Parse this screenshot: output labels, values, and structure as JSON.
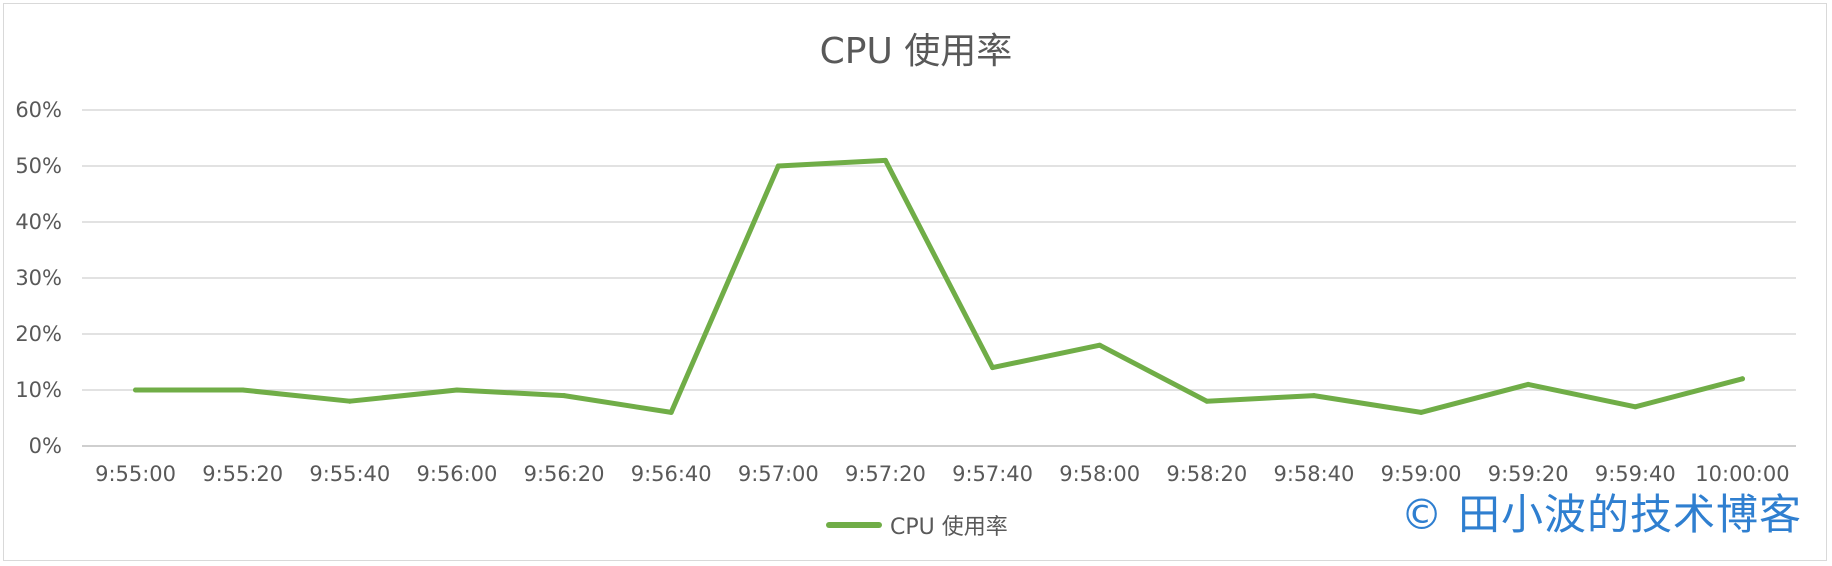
{
  "chart_data": {
    "type": "line",
    "title": "CPU 使用率",
    "categories": [
      "9:55:00",
      "9:55:20",
      "9:55:40",
      "9:56:00",
      "9:56:20",
      "9:56:40",
      "9:57:00",
      "9:57:20",
      "9:57:40",
      "9:58:00",
      "9:58:20",
      "9:58:40",
      "9:59:00",
      "9:59:20",
      "9:59:40",
      "10:00:00"
    ],
    "series": [
      {
        "name": "CPU 使用率",
        "values": [
          10,
          10,
          8,
          10,
          9,
          6,
          50,
          51,
          14,
          18,
          8,
          9,
          6,
          11,
          7,
          12
        ]
      }
    ],
    "ylim": [
      0,
      60
    ],
    "yticks": [
      "0%",
      "10%",
      "20%",
      "30%",
      "40%",
      "50%",
      "60%"
    ],
    "grid": true,
    "legend_position": "bottom",
    "color": "#70ad47"
  },
  "watermark": "© 田小波的技术博客"
}
